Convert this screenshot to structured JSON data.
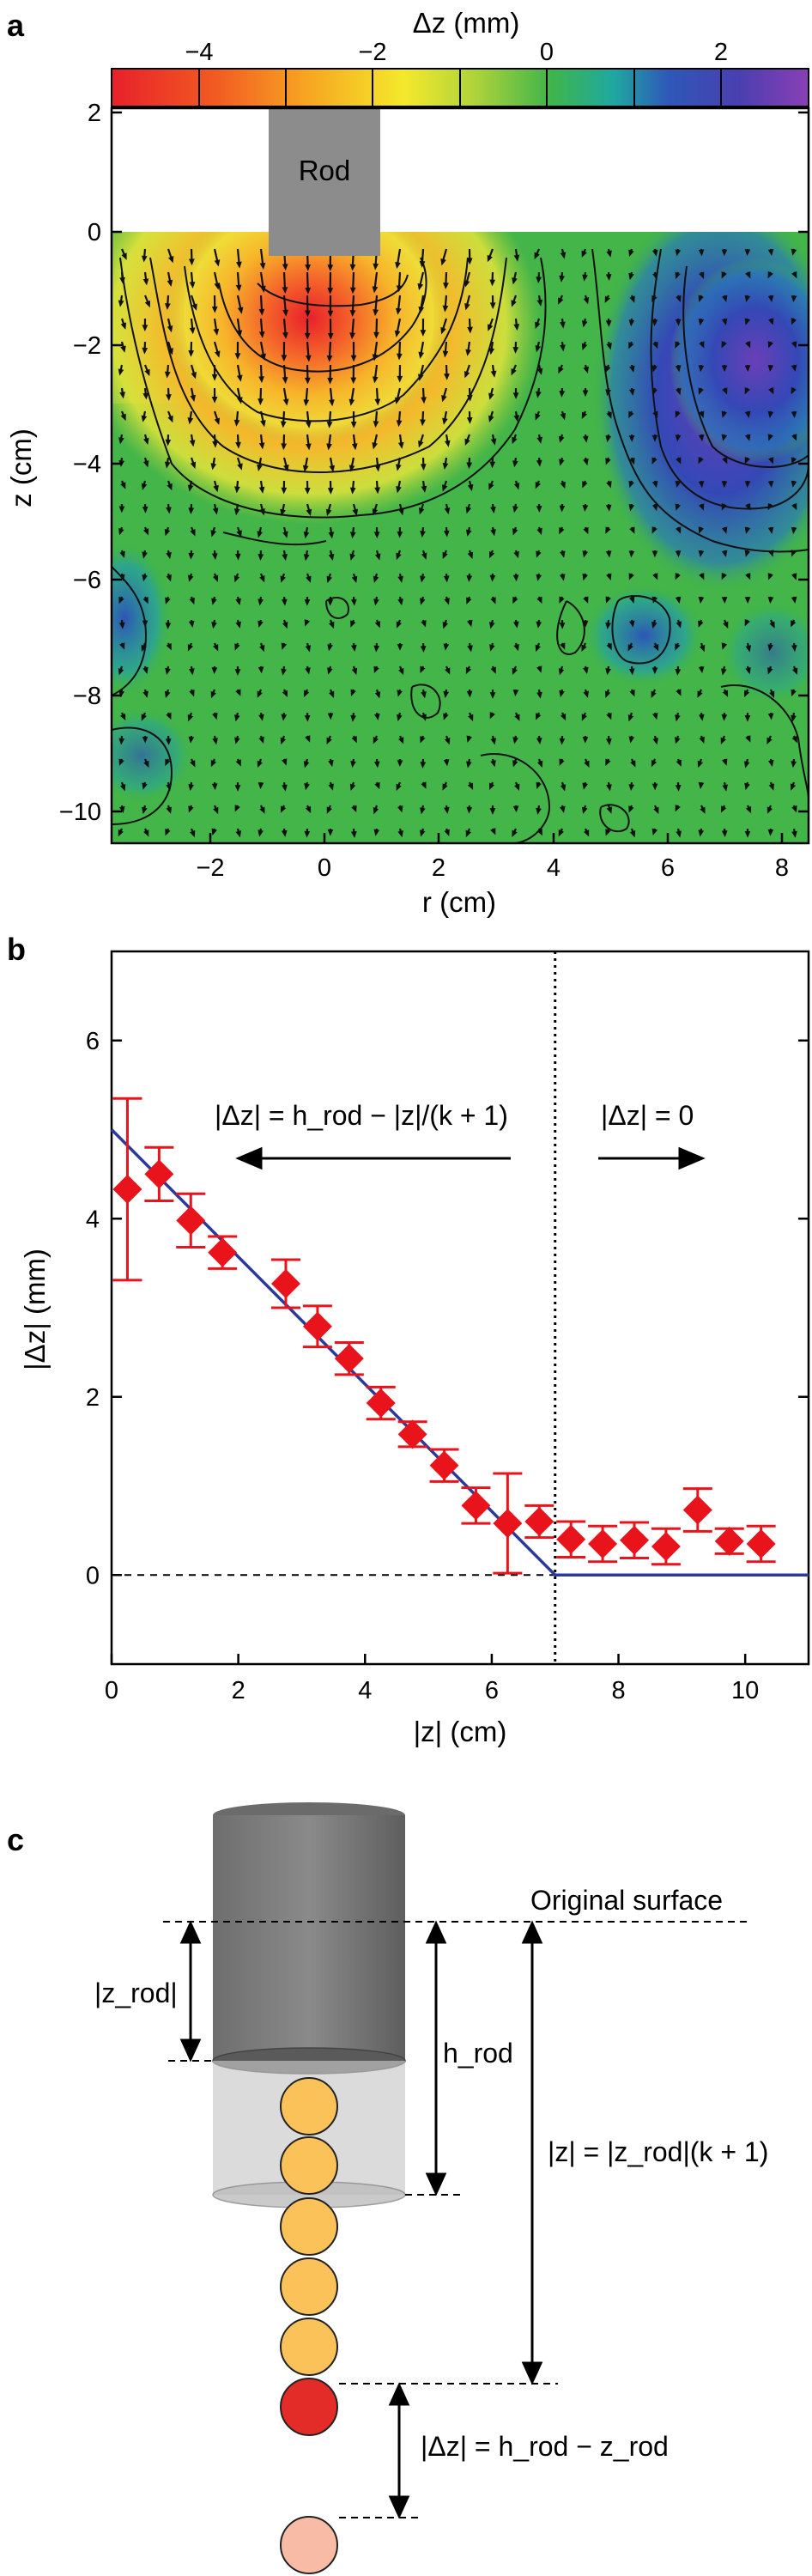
{
  "panel_a": {
    "label": "a",
    "colorbar_title": "Δz (mm)",
    "colorbar_ticks": [
      "−4",
      "−2",
      "0",
      "2"
    ],
    "rod_label": "Rod",
    "ylabel": "z (cm)",
    "xlabel": "r (cm)",
    "y_ticks": [
      "2",
      "0",
      "−2",
      "−4",
      "−6",
      "−8",
      "−10"
    ],
    "x_ticks": [
      "−2",
      "0",
      "2",
      "4",
      "6",
      "8"
    ]
  },
  "panel_b": {
    "label": "b",
    "ylabel": "|Δz| (mm)",
    "xlabel": "|z| (cm)",
    "y_ticks": [
      "0",
      "2",
      "4",
      "6"
    ],
    "x_ticks": [
      "0",
      "2",
      "4",
      "6",
      "8",
      "10"
    ],
    "annot_left": "|Δz| = h_rod − |z|/(k + 1)",
    "annot_right": "|Δz| = 0"
  },
  "panel_c": {
    "label": "c",
    "original_surface": "Original surface",
    "z_rod": "|z_rod|",
    "h_rod": "h_rod",
    "z_relation": "|z| = |z_rod|(k + 1)",
    "dz_relation": "|Δz| = h_rod − z_rod"
  },
  "colors": {
    "marker": "#e8131b",
    "fit_line": "#2b3a9a",
    "rod": "#8c8c8c",
    "bead_orange": "#fbc25a",
    "bead_red": "#e32b27",
    "bead_pink": "#f7bba6"
  },
  "chart_data": [
    {
      "type": "heatmap",
      "title": "Δz (mm)",
      "xlabel": "r (cm)",
      "ylabel": "z (cm)",
      "xlim": [
        -3.7,
        8.6
      ],
      "ylim": [
        -10.5,
        2
      ],
      "color_range": [
        -5,
        3
      ],
      "note": "colormap of vertical displacement with displacement arrows; rod inserted at surface"
    },
    {
      "type": "scatter",
      "xlabel": "|z| (cm)",
      "ylabel": "|Δz| (mm)",
      "xlim": [
        0,
        11
      ],
      "ylim": [
        -1,
        7
      ],
      "series": [
        {
          "x": [
            0.25,
            0.75,
            1.25,
            1.75,
            2.75,
            3.25,
            3.75,
            4.25,
            4.75,
            5.25,
            5.75,
            6.25,
            6.75,
            7.25,
            7.75,
            8.25,
            8.75,
            9.25,
            9.75,
            10.25
          ],
          "y": [
            4.33,
            4.5,
            3.98,
            3.62,
            3.27,
            2.79,
            2.43,
            1.93,
            1.58,
            1.23,
            0.78,
            0.58,
            0.6,
            0.4,
            0.35,
            0.39,
            0.32,
            0.73,
            0.38,
            0.35
          ],
          "err": [
            1.02,
            0.3,
            0.3,
            0.18,
            0.27,
            0.23,
            0.18,
            0.18,
            0.14,
            0.18,
            0.2,
            0.56,
            0.18,
            0.2,
            0.2,
            0.2,
            0.2,
            0.24,
            0.14,
            0.2
          ]
        }
      ],
      "fit": {
        "x": [
          0,
          7,
          11
        ],
        "y": [
          5,
          0,
          0
        ]
      },
      "vline": 7,
      "hline": 0
    }
  ]
}
